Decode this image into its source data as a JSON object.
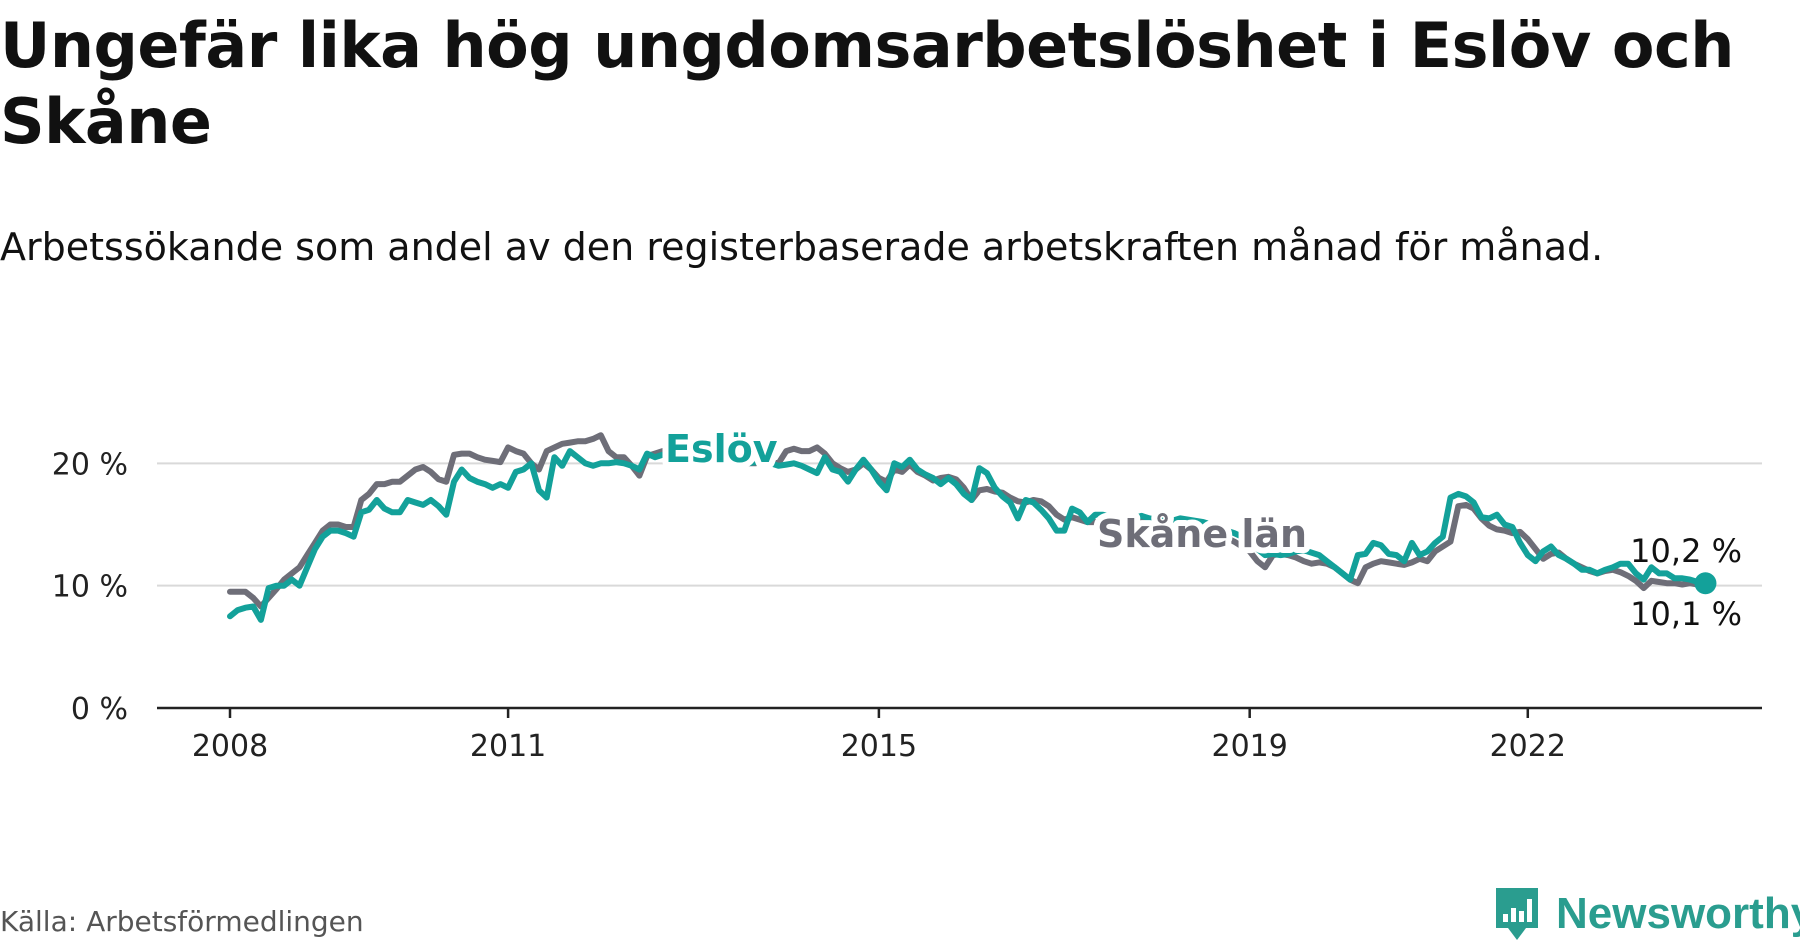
{
  "title": "Ungefär lika hög ungdomsarbetslöshet i Eslöv och Skåne",
  "subtitle": "Arbetssökande som andel av den registerbaserade arbetskraften månad för månad.",
  "source": "Källa: Arbetsförmedlingen",
  "brand": {
    "name": "Newsworthy",
    "icon": "newsworthy-logo-icon",
    "color": "#2a9d8f"
  },
  "colors": {
    "eslov": "#13a19a",
    "skane": "#6e6e78",
    "grid": "#d9d9d9",
    "axis": "#222222"
  },
  "chart_data": {
    "type": "line",
    "x_start": "2008-01",
    "x_step": "month",
    "x_ticks": [
      {
        "date": "2008-01",
        "label": "2008"
      },
      {
        "date": "2011-01",
        "label": "2011"
      },
      {
        "date": "2015-01",
        "label": "2015"
      },
      {
        "date": "2019-01",
        "label": "2019"
      },
      {
        "date": "2022-01",
        "label": "2022"
      }
    ],
    "y_ticks": [
      {
        "value": 0,
        "label": "0 %"
      },
      {
        "value": 10,
        "label": "10 %"
      },
      {
        "value": 20,
        "label": "20 %"
      }
    ],
    "ylim": [
      0,
      21.5
    ],
    "xlim": [
      "2008-01",
      "2023-10"
    ],
    "grid": true,
    "series": [
      {
        "name": "Eslöv",
        "key": "eslov",
        "end_label": "10,2 %",
        "values": [
          7.5,
          8.0,
          8.2,
          8.3,
          7.2,
          9.8,
          10.0,
          10.0,
          10.5,
          10.0,
          11.5,
          13.0,
          14.0,
          14.5,
          14.5,
          14.3,
          14.0,
          16.0,
          16.2,
          17.0,
          16.3,
          16.0,
          16.0,
          17.0,
          16.8,
          16.6,
          17.0,
          16.5,
          15.8,
          18.5,
          19.5,
          18.8,
          18.5,
          18.3,
          18.0,
          18.3,
          18.0,
          19.3,
          19.5,
          20.0,
          17.8,
          17.2,
          20.5,
          19.8,
          21.0,
          20.5,
          20.0,
          19.8,
          20.0,
          20.0,
          20.1,
          20.0,
          19.8,
          19.5,
          20.8,
          20.5,
          20.7,
          20.8,
          20.9,
          20.8,
          20.6,
          20.5,
          20.4,
          20.5,
          20.5,
          20.3,
          20.2,
          20.0,
          20.1,
          20.0,
          20.0,
          19.8,
          19.9,
          20.0,
          19.8,
          19.5,
          19.2,
          20.5,
          19.5,
          19.3,
          18.5,
          19.5,
          20.3,
          19.5,
          18.5,
          17.8,
          20.0,
          19.7,
          20.3,
          19.5,
          19.1,
          18.8,
          18.3,
          18.8,
          18.3,
          17.5,
          17.0,
          19.6,
          19.2,
          18.0,
          17.3,
          16.8,
          15.5,
          17.0,
          16.8,
          16.2,
          15.5,
          14.5,
          14.5,
          16.3,
          16.0,
          15.2,
          15.8,
          15.8,
          15.6,
          15.3,
          15.2,
          15.5,
          15.7,
          15.5,
          15.4,
          15.3,
          15.3,
          15.5,
          15.4,
          15.3,
          15.2,
          15.0,
          14.8,
          14.5,
          14.3,
          14.0,
          13.5,
          13.0,
          12.5,
          12.6,
          12.5,
          12.6,
          12.8,
          12.9,
          12.7,
          12.5,
          12.0,
          11.5,
          11.0,
          10.5,
          12.5,
          12.6,
          13.5,
          13.3,
          12.6,
          12.5,
          12.0,
          13.5,
          12.5,
          12.8,
          13.5,
          14.0,
          17.2,
          17.5,
          17.3,
          16.8,
          15.6,
          15.5,
          15.8,
          15.0,
          14.8,
          13.5,
          12.5,
          12.0,
          12.8,
          13.2,
          12.5,
          12.2,
          11.8,
          11.3,
          11.3,
          11.0,
          11.3,
          11.5,
          11.8,
          11.8,
          11.0,
          10.5,
          11.5,
          11.0,
          11.0,
          10.6,
          10.6,
          10.5,
          10.3,
          10.2
        ]
      },
      {
        "name": "Skåne län",
        "key": "skane",
        "end_label": "10,1 %",
        "values": [
          9.5,
          9.5,
          9.5,
          9.0,
          8.3,
          9.0,
          9.7,
          10.5,
          11.0,
          11.5,
          12.5,
          13.5,
          14.5,
          15.0,
          15.0,
          14.8,
          14.8,
          17.0,
          17.5,
          18.3,
          18.3,
          18.5,
          18.5,
          19.0,
          19.5,
          19.7,
          19.3,
          18.7,
          18.5,
          20.7,
          20.8,
          20.8,
          20.5,
          20.3,
          20.2,
          20.1,
          21.3,
          21.0,
          20.8,
          20.0,
          19.5,
          21.0,
          21.3,
          21.6,
          21.7,
          21.8,
          21.8,
          22.0,
          22.3,
          21.0,
          20.5,
          20.5,
          19.8,
          19.0,
          20.6,
          20.8,
          21.0,
          21.1,
          21.2,
          21.1,
          21.0,
          20.9,
          20.8,
          20.6,
          20.5,
          20.3,
          20.2,
          20.0,
          20.0,
          20.1,
          20.1,
          20.0,
          21.0,
          21.2,
          21.0,
          21.0,
          21.3,
          20.8,
          20.0,
          19.6,
          19.3,
          19.5,
          20.0,
          19.5,
          18.8,
          18.5,
          19.5,
          19.3,
          19.9,
          19.3,
          19.0,
          18.6,
          18.8,
          18.9,
          18.7,
          18.0,
          17.0,
          17.8,
          17.9,
          17.7,
          17.6,
          17.2,
          16.9,
          16.8,
          17.0,
          16.9,
          16.5,
          15.8,
          15.4,
          15.6,
          15.4,
          15.2,
          15.2,
          15.3,
          15.3,
          15.1,
          15.0,
          15.2,
          15.3,
          15.2,
          15.2,
          15.1,
          15.0,
          15.2,
          15.0,
          14.8,
          14.6,
          14.5,
          14.2,
          13.9,
          13.6,
          13.2,
          12.8,
          12.0,
          11.5,
          12.5,
          12.6,
          12.5,
          12.3,
          12.0,
          11.8,
          11.9,
          11.8,
          11.5,
          11.0,
          10.5,
          10.2,
          11.5,
          11.8,
          12.0,
          11.9,
          11.8,
          11.7,
          11.9,
          12.2,
          12.0,
          12.8,
          13.2,
          13.6,
          16.5,
          16.6,
          16.3,
          15.5,
          14.9,
          14.6,
          14.5,
          14.3,
          14.4,
          13.8,
          13.0,
          12.2,
          12.6,
          12.7,
          12.2,
          11.8,
          11.5,
          11.2,
          11.0,
          11.2,
          11.3,
          11.1,
          10.8,
          10.4,
          9.8,
          10.4,
          10.3,
          10.2,
          10.2,
          10.1,
          10.2,
          10.1,
          10.1
        ]
      }
    ],
    "annotations": [
      {
        "text": "Eslöv",
        "series": "eslov"
      },
      {
        "text": "Skåne län",
        "series": "skane"
      }
    ]
  }
}
